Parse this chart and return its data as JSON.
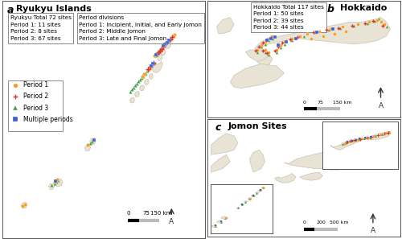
{
  "fig_width": 5.0,
  "fig_height": 2.97,
  "background_color": "#ffffff",
  "land_color": "#e8e3d5",
  "land_edge": "#c8c3b0",
  "border_color": "#555555",
  "period1_color": "#f5a020",
  "period2_color": "#e03030",
  "period3_color": "#40a040",
  "multiple_color": "#4060d0",
  "panel_a": {
    "label": "a",
    "title": "Ryukyu Islands",
    "stats_box1": "Ryukyu Total 72 sites\nPeriod 1: 11 sites\nPeriod 2: 8 sites\nPeriod 3: 67 sites",
    "stats_box2": "Period divisions\nPeriod 1: Incipient, Initial, and Early Jomon\nPeriod 2: Middle Jomon\nPeriod 3: Late and Final Jomon"
  },
  "panel_b": {
    "label": "b",
    "title": "Hokkaido",
    "stats_box": "Hokkaido Total 117 sites\nPeriod 1: 50 sites\nPeriod 2: 39 sites\nPeriod 3: 44 sites"
  },
  "panel_c": {
    "label": "c",
    "title": "Jomon Sites"
  }
}
